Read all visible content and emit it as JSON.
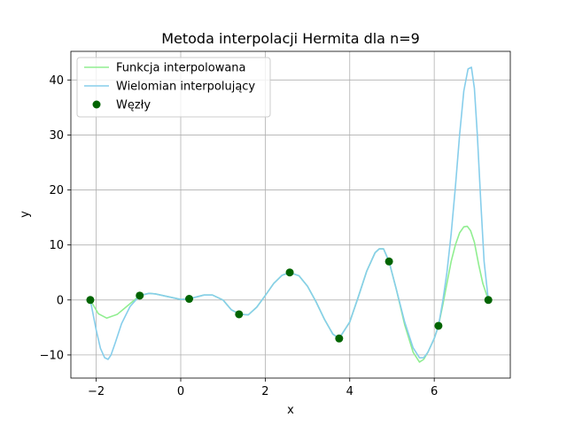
{
  "chart_data": {
    "type": "line",
    "title": "Metoda interpolacji Hermita dla n=9",
    "xlabel": "x",
    "ylabel": "y",
    "xlim": [
      -2.6,
      7.8
    ],
    "ylim": [
      -14.2,
      45.2
    ],
    "xticks": [
      -2,
      0,
      2,
      4,
      6
    ],
    "yticks": [
      -10,
      0,
      10,
      20,
      30,
      40
    ],
    "grid": true,
    "legend_position": "upper-left",
    "series": [
      {
        "name": "Funkcja interpolowana",
        "kind": "line",
        "color": "#90ee90",
        "x": [
          -2.14,
          -1.95,
          -1.75,
          -1.5,
          -1.25,
          -0.97,
          -0.75,
          -0.6,
          -0.3,
          0.0,
          0.2,
          0.4,
          0.55,
          0.75,
          1.0,
          1.2,
          1.4,
          1.6,
          1.8,
          2.0,
          2.2,
          2.4,
          2.58,
          2.8,
          3.0,
          3.2,
          3.4,
          3.6,
          3.75,
          4.0,
          4.2,
          4.4,
          4.6,
          4.7,
          4.8,
          4.93,
          5.1,
          5.3,
          5.5,
          5.65,
          5.75,
          5.85,
          6.0,
          6.1,
          6.2,
          6.3,
          6.4,
          6.5,
          6.6,
          6.7,
          6.78,
          6.86,
          6.95,
          7.05,
          7.15,
          7.28
        ],
        "y": [
          0.0,
          -2.5,
          -3.3,
          -2.6,
          -1.0,
          0.8,
          1.2,
          1.1,
          0.6,
          0.1,
          0.2,
          0.6,
          0.9,
          0.9,
          0.0,
          -1.8,
          -2.6,
          -2.7,
          -1.3,
          0.8,
          3.0,
          4.5,
          5.0,
          4.4,
          2.5,
          -0.3,
          -3.5,
          -6.2,
          -7.0,
          -4.0,
          0.5,
          5.2,
          8.6,
          9.3,
          9.3,
          7.0,
          2.0,
          -4.5,
          -9.5,
          -11.3,
          -10.8,
          -9.5,
          -7.0,
          -4.7,
          -1.0,
          3.0,
          7.0,
          10.0,
          12.2,
          13.3,
          13.4,
          12.6,
          10.5,
          6.5,
          3.0,
          0.0
        ]
      },
      {
        "name": "Wielomian interpolujący",
        "kind": "line",
        "color": "#87ceeb",
        "x": [
          -2.14,
          -2.0,
          -1.9,
          -1.8,
          -1.72,
          -1.65,
          -1.55,
          -1.4,
          -1.2,
          -0.97,
          -0.75,
          -0.6,
          -0.3,
          0.0,
          0.2,
          0.4,
          0.55,
          0.75,
          1.0,
          1.2,
          1.4,
          1.6,
          1.8,
          2.0,
          2.2,
          2.4,
          2.58,
          2.8,
          3.0,
          3.2,
          3.4,
          3.6,
          3.75,
          4.0,
          4.2,
          4.4,
          4.6,
          4.7,
          4.8,
          4.93,
          5.1,
          5.3,
          5.5,
          5.65,
          5.75,
          5.85,
          6.0,
          6.1,
          6.2,
          6.3,
          6.4,
          6.5,
          6.6,
          6.7,
          6.8,
          6.88,
          6.95,
          7.02,
          7.1,
          7.18,
          7.28
        ],
        "y": [
          0.0,
          -5.5,
          -8.8,
          -10.5,
          -10.8,
          -10.0,
          -7.8,
          -4.3,
          -1.2,
          0.8,
          1.2,
          1.1,
          0.6,
          0.1,
          0.2,
          0.6,
          0.9,
          0.9,
          0.0,
          -1.8,
          -2.6,
          -2.7,
          -1.3,
          0.8,
          3.0,
          4.5,
          5.0,
          4.4,
          2.5,
          -0.3,
          -3.5,
          -6.2,
          -7.0,
          -4.0,
          0.5,
          5.2,
          8.6,
          9.3,
          9.3,
          7.0,
          2.0,
          -4.0,
          -8.7,
          -10.5,
          -10.5,
          -9.5,
          -7.0,
          -4.7,
          -0.3,
          5.0,
          12.0,
          20.5,
          30.0,
          38.0,
          42.0,
          42.3,
          38.5,
          30.0,
          18.0,
          7.0,
          0.0
        ]
      },
      {
        "name": "Węzły",
        "kind": "scatter",
        "color": "#006400",
        "x": [
          -2.14,
          -0.97,
          0.2,
          1.38,
          2.58,
          3.75,
          4.93,
          6.1,
          7.28
        ],
        "y": [
          0.0,
          0.8,
          0.2,
          -2.6,
          5.0,
          -7.0,
          7.0,
          -4.7,
          0.0
        ]
      }
    ]
  }
}
